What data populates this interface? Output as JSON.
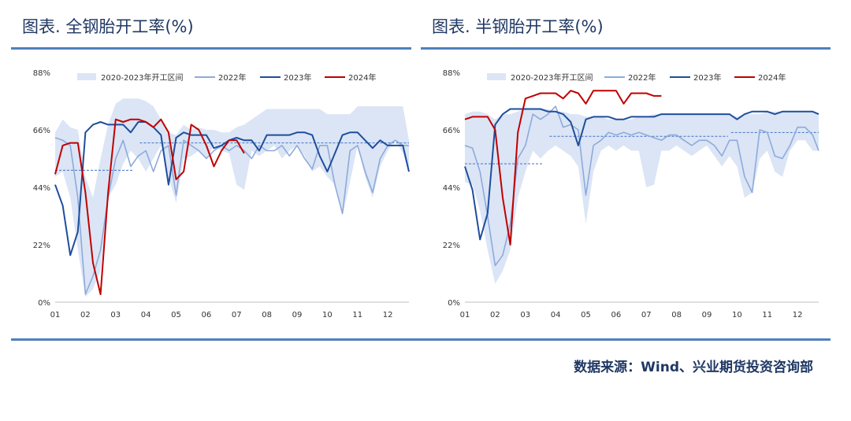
{
  "source_text": "数据来源：Wind、兴业期货投资咨询部",
  "colors": {
    "band": "#dbe5f5",
    "y2022": "#8eaadb",
    "y2023": "#1f4e9c",
    "y2024": "#c00000",
    "avg_line": "#4472c4",
    "rule": "#4f81bd"
  },
  "chart_data": [
    {
      "type": "line",
      "title": "图表. 全钢胎开工率(%)",
      "xlabel": "",
      "ylabel": "",
      "ylim": [
        0,
        88
      ],
      "xlim": [
        1,
        12.7
      ],
      "y_ticks": [
        "0%",
        "22%",
        "44%",
        "66%",
        "88%"
      ],
      "y_tick_values": [
        0,
        22,
        44,
        66,
        88
      ],
      "x_ticks": [
        "01",
        "02",
        "03",
        "04",
        "05",
        "06",
        "07",
        "08",
        "09",
        "10",
        "11",
        "12"
      ],
      "legend": [
        "2020-2023年开工区间",
        "2022年",
        "2023年",
        "2024年"
      ],
      "legend_position": "top",
      "band": {
        "name": "2020-2023年开工区间",
        "x": [
          1,
          1.25,
          1.5,
          1.75,
          2,
          2.25,
          2.5,
          2.75,
          3,
          3.25,
          3.5,
          3.75,
          4,
          4.25,
          4.5,
          4.75,
          5,
          5.25,
          5.5,
          5.75,
          6,
          6.25,
          6.5,
          6.75,
          7,
          7.25,
          7.5,
          7.75,
          8,
          8.25,
          8.5,
          8.75,
          9,
          9.25,
          9.5,
          9.75,
          10,
          10.25,
          10.5,
          10.75,
          11,
          11.25,
          11.5,
          11.75,
          12,
          12.25,
          12.5,
          12.7
        ],
        "upper": [
          65,
          70,
          67,
          66,
          48,
          40,
          55,
          68,
          76,
          78,
          78,
          78,
          77,
          75,
          70,
          65,
          64,
          68,
          66,
          67,
          66,
          66,
          65,
          65,
          67,
          68,
          70,
          72,
          74,
          74,
          74,
          74,
          74,
          74,
          74,
          74,
          72,
          72,
          72,
          72,
          75,
          75,
          75,
          75,
          75,
          75,
          75,
          62
        ],
        "lower": [
          48,
          50,
          40,
          20,
          2,
          5,
          12,
          40,
          45,
          53,
          58,
          55,
          50,
          55,
          60,
          48,
          38,
          55,
          56,
          58,
          55,
          60,
          58,
          57,
          45,
          43,
          58,
          56,
          58,
          60,
          55,
          58,
          60,
          56,
          50,
          52,
          48,
          45,
          33,
          46,
          60,
          48,
          40,
          52,
          58,
          62,
          57,
          50
        ]
      },
      "series": [
        {
          "name": "2022年",
          "x": [
            1,
            1.25,
            1.5,
            1.75,
            2,
            2.25,
            2.5,
            2.75,
            3,
            3.25,
            3.5,
            3.75,
            4,
            4.25,
            4.5,
            4.75,
            5,
            5.25,
            5.5,
            5.75,
            6,
            6.25,
            6.5,
            6.75,
            7,
            7.25,
            7.5,
            7.75,
            8,
            8.25,
            8.5,
            8.75,
            9,
            9.25,
            9.5,
            9.75,
            10,
            10.25,
            10.5,
            10.75,
            11,
            11.25,
            11.5,
            11.75,
            12,
            12.25,
            12.5,
            12.7
          ],
          "values": [
            63,
            62,
            60,
            40,
            3,
            10,
            20,
            40,
            55,
            62,
            52,
            56,
            58,
            50,
            58,
            60,
            41,
            62,
            60,
            58,
            55,
            58,
            60,
            58,
            60,
            58,
            55,
            60,
            58,
            58,
            60,
            56,
            60,
            55,
            51,
            60,
            60,
            45,
            34,
            58,
            60,
            50,
            42,
            55,
            60,
            62,
            60,
            60
          ]
        },
        {
          "name": "2023年",
          "x": [
            1,
            1.25,
            1.5,
            1.75,
            2,
            2.25,
            2.5,
            2.75,
            3,
            3.25,
            3.5,
            3.75,
            4,
            4.25,
            4.5,
            4.75,
            5,
            5.25,
            5.5,
            5.75,
            6,
            6.25,
            6.5,
            6.75,
            7,
            7.25,
            7.5,
            7.75,
            8,
            8.25,
            8.5,
            8.75,
            9,
            9.25,
            9.5,
            9.75,
            10,
            10.25,
            10.5,
            10.75,
            11,
            11.25,
            11.5,
            11.75,
            12,
            12.25,
            12.5,
            12.7
          ],
          "values": [
            45,
            37,
            18,
            27,
            65,
            68,
            69,
            68,
            68,
            68,
            65,
            69,
            69,
            67,
            64,
            45,
            63,
            65,
            64,
            64,
            64,
            59,
            60,
            62,
            63,
            62,
            62,
            58,
            64,
            64,
            64,
            64,
            65,
            65,
            64,
            56,
            50,
            57,
            64,
            65,
            65,
            62,
            59,
            62,
            60,
            60,
            60,
            50
          ]
        },
        {
          "name": "2024年",
          "x": [
            1,
            1.25,
            1.5,
            1.75,
            2,
            2.25,
            2.5,
            2.75,
            3,
            3.25,
            3.5,
            3.75,
            4,
            4.25,
            4.5,
            4.75,
            5,
            5.25,
            5.5,
            5.75,
            6,
            6.25,
            6.5,
            6.75,
            7,
            7.25
          ],
          "values": [
            49,
            60,
            61,
            61,
            42,
            15,
            3,
            42,
            70,
            69,
            70,
            70,
            69,
            67,
            70,
            65,
            47,
            50,
            68,
            66,
            60,
            52,
            58,
            62,
            62,
            57
          ]
        }
      ],
      "avg_lines": [
        {
          "x": [
            1,
            3.6
          ],
          "value": 50.5
        },
        {
          "x": [
            3.8,
            12.7
          ],
          "value": 61
        }
      ]
    },
    {
      "type": "line",
      "title": "图表. 半钢胎开工率(%)",
      "xlabel": "",
      "ylabel": "",
      "ylim": [
        0,
        88
      ],
      "xlim": [
        1,
        12.7
      ],
      "y_ticks": [
        "0%",
        "22%",
        "44%",
        "66%",
        "88%"
      ],
      "y_tick_values": [
        0,
        22,
        44,
        66,
        88
      ],
      "x_ticks": [
        "01",
        "02",
        "03",
        "04",
        "05",
        "06",
        "07",
        "08",
        "09",
        "10",
        "11",
        "12"
      ],
      "legend": [
        "2020-2023年开工区间",
        "2022年",
        "2023年",
        "2024年"
      ],
      "legend_position": "top",
      "band": {
        "name": "2020-2023年开工区间",
        "x": [
          1,
          1.25,
          1.5,
          1.75,
          2,
          2.25,
          2.5,
          2.75,
          3,
          3.25,
          3.5,
          3.75,
          4,
          4.25,
          4.5,
          4.75,
          5,
          5.25,
          5.5,
          5.75,
          6,
          6.25,
          6.5,
          6.75,
          7,
          7.25,
          7.5,
          7.75,
          8,
          8.25,
          8.5,
          8.75,
          9,
          9.25,
          9.5,
          9.75,
          10,
          10.25,
          10.5,
          10.75,
          11,
          11.25,
          11.5,
          11.75,
          12,
          12.25,
          12.5,
          12.7
        ],
        "upper": [
          72,
          73,
          73,
          72,
          70,
          72,
          72,
          73,
          74,
          74,
          74,
          74,
          73,
          73,
          72,
          72,
          71,
          71,
          71,
          70,
          70,
          70,
          70,
          71,
          71,
          72,
          72,
          72,
          72,
          72,
          72,
          72,
          72,
          72,
          72,
          72,
          71,
          72,
          72,
          72,
          73,
          73,
          73,
          73,
          73,
          73,
          73,
          72
        ],
        "lower": [
          46,
          45,
          35,
          20,
          7,
          12,
          20,
          40,
          50,
          58,
          55,
          58,
          60,
          58,
          56,
          52,
          30,
          50,
          58,
          60,
          58,
          60,
          58,
          58,
          44,
          45,
          58,
          58,
          60,
          58,
          56,
          58,
          60,
          56,
          52,
          56,
          52,
          40,
          42,
          55,
          58,
          50,
          48,
          58,
          62,
          62,
          58,
          58
        ]
      },
      "series": [
        {
          "name": "2022年",
          "x": [
            1,
            1.25,
            1.5,
            1.75,
            2,
            2.25,
            2.5,
            2.75,
            3,
            3.25,
            3.5,
            3.75,
            4,
            4.25,
            4.5,
            4.75,
            5,
            5.25,
            5.5,
            5.75,
            6,
            6.25,
            6.5,
            6.75,
            7,
            7.25,
            7.5,
            7.75,
            8,
            8.25,
            8.5,
            8.75,
            9,
            9.25,
            9.5,
            9.75,
            10,
            10.25,
            10.5,
            10.75,
            11,
            11.25,
            11.5,
            11.75,
            12,
            12.25,
            12.5,
            12.7
          ],
          "values": [
            60,
            59,
            50,
            33,
            14,
            18,
            30,
            55,
            60,
            72,
            70,
            72,
            75,
            67,
            68,
            66,
            41,
            60,
            62,
            65,
            64,
            65,
            64,
            65,
            64,
            63,
            62,
            64,
            64,
            62,
            60,
            62,
            62,
            60,
            56,
            62,
            62,
            48,
            42,
            66,
            65,
            56,
            55,
            60,
            67,
            67,
            64,
            58
          ]
        },
        {
          "name": "2023年",
          "x": [
            1,
            1.25,
            1.5,
            1.75,
            2,
            2.25,
            2.5,
            2.75,
            3,
            3.25,
            3.5,
            3.75,
            4,
            4.25,
            4.5,
            4.75,
            5,
            5.25,
            5.5,
            5.75,
            6,
            6.25,
            6.5,
            6.75,
            7,
            7.25,
            7.5,
            7.75,
            8,
            8.25,
            8.5,
            8.75,
            9,
            9.25,
            9.5,
            9.75,
            10,
            10.25,
            10.5,
            10.75,
            11,
            11.25,
            11.5,
            11.75,
            12,
            12.25,
            12.5,
            12.7
          ],
          "values": [
            52,
            43,
            24,
            34,
            68,
            72,
            74,
            74,
            74,
            74,
            74,
            73,
            73,
            72,
            69,
            60,
            70,
            71,
            71,
            71,
            70,
            70,
            71,
            71,
            71,
            71,
            72,
            72,
            72,
            72,
            72,
            72,
            72,
            72,
            72,
            72,
            70,
            72,
            73,
            73,
            73,
            72,
            73,
            73,
            73,
            73,
            73,
            72
          ]
        },
        {
          "name": "2024年",
          "x": [
            1,
            1.25,
            1.5,
            1.75,
            2,
            2.25,
            2.5,
            2.75,
            3,
            3.25,
            3.5,
            3.75,
            4,
            4.25,
            4.5,
            4.75,
            5,
            5.25,
            5.5,
            5.75,
            6,
            6.25,
            6.5,
            6.75,
            7,
            7.25,
            7.5
          ],
          "values": [
            70,
            71,
            71,
            71,
            66,
            40,
            22,
            65,
            78,
            79,
            80,
            80,
            80,
            78,
            81,
            80,
            76,
            81,
            81,
            81,
            81,
            76,
            80,
            80,
            80,
            79,
            79
          ]
        }
      ],
      "avg_lines": [
        {
          "x": [
            1,
            3.6
          ],
          "value": 53
        },
        {
          "x": [
            3.8,
            9.7
          ],
          "value": 63.5
        },
        {
          "x": [
            9.8,
            12.7
          ],
          "value": 65
        }
      ]
    }
  ]
}
